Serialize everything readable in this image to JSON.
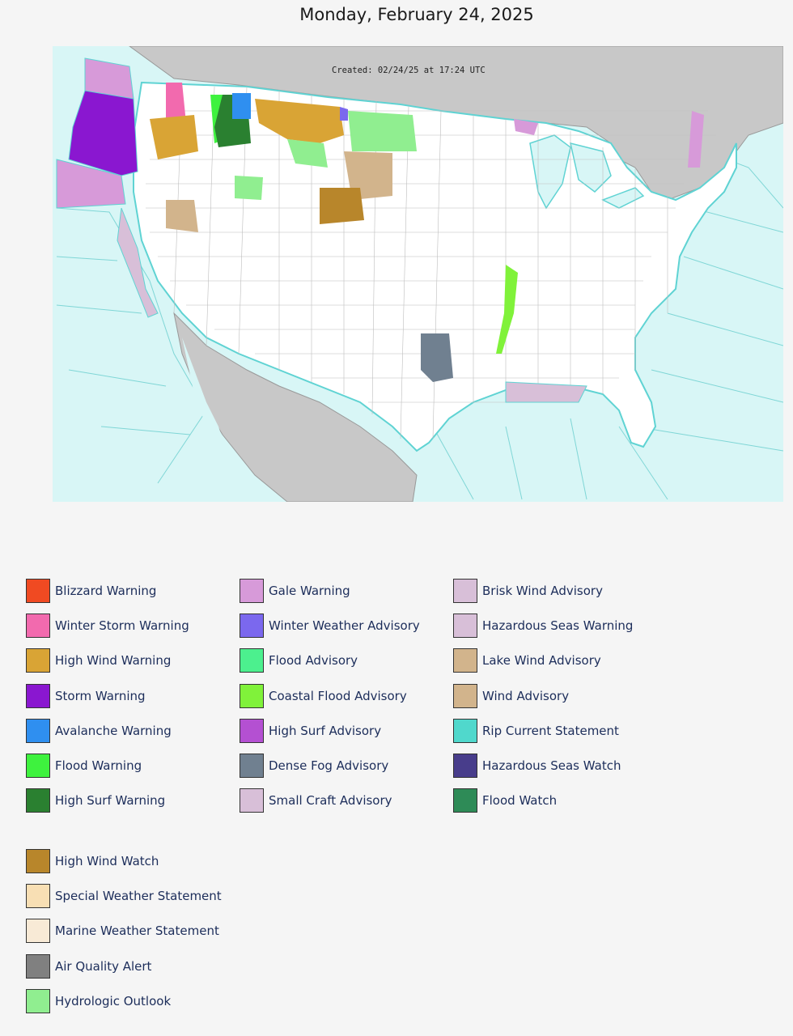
{
  "page": {
    "date": "Monday, February 24, 2025"
  },
  "map": {
    "created_label": "Created: 02/24/25 at 17:24 UTC",
    "colors": {
      "ocean": "#d8f6f6",
      "land": "#ffffff",
      "foreign_land": "#c8c8c8",
      "borders": "#8a8a8a",
      "coast": "#5fd3d3"
    }
  },
  "legend": {
    "columns": [
      [
        {
          "label": "Blizzard Warning",
          "color": "#f04a22"
        },
        {
          "label": "Winter Storm Warning",
          "color": "#f26aae"
        },
        {
          "label": "High Wind Warning",
          "color": "#d9a435"
        },
        {
          "label": "Storm Warning",
          "color": "#8a17d0"
        },
        {
          "label": "Avalanche Warning",
          "color": "#2f8ff0"
        },
        {
          "label": "Flood Warning",
          "color": "#3ef23e"
        },
        {
          "label": "High Surf Warning",
          "color": "#2a8030"
        }
      ],
      [
        {
          "label": "Gale Warning",
          "color": "#d79ad9"
        },
        {
          "label": "Winter Weather Advisory",
          "color": "#7b68ee"
        },
        {
          "label": "Flood Advisory",
          "color": "#4cf08e"
        },
        {
          "label": "Coastal Flood Advisory",
          "color": "#80f23a"
        },
        {
          "label": "High Surf Advisory",
          "color": "#b450d2"
        },
        {
          "label": "Dense Fog Advisory",
          "color": "#708090"
        },
        {
          "label": "Small Craft Advisory",
          "color": "#d8bfd8"
        }
      ],
      [
        {
          "label": "Brisk Wind Advisory",
          "color": "#d8bfd8"
        },
        {
          "label": "Hazardous Seas Warning",
          "color": "#d8bfd8"
        },
        {
          "label": "Lake Wind Advisory",
          "color": "#d2b48c"
        },
        {
          "label": "Wind Advisory",
          "color": "#d2b48c"
        },
        {
          "label": "Rip Current Statement",
          "color": "#50d8cc"
        },
        {
          "label": "Hazardous Seas Watch",
          "color": "#483d8b"
        },
        {
          "label": "Flood Watch",
          "color": "#2e8b57"
        }
      ],
      [
        {
          "label": "High Wind Watch",
          "color": "#b8862b"
        },
        {
          "label": "Special Weather Statement",
          "color": "#f8dfb4"
        },
        {
          "label": "Marine Weather Statement",
          "color": "#f8ead6"
        },
        {
          "label": "Air Quality Alert",
          "color": "#808080"
        },
        {
          "label": "Hydrologic Outlook",
          "color": "#90ee90"
        }
      ]
    ]
  }
}
